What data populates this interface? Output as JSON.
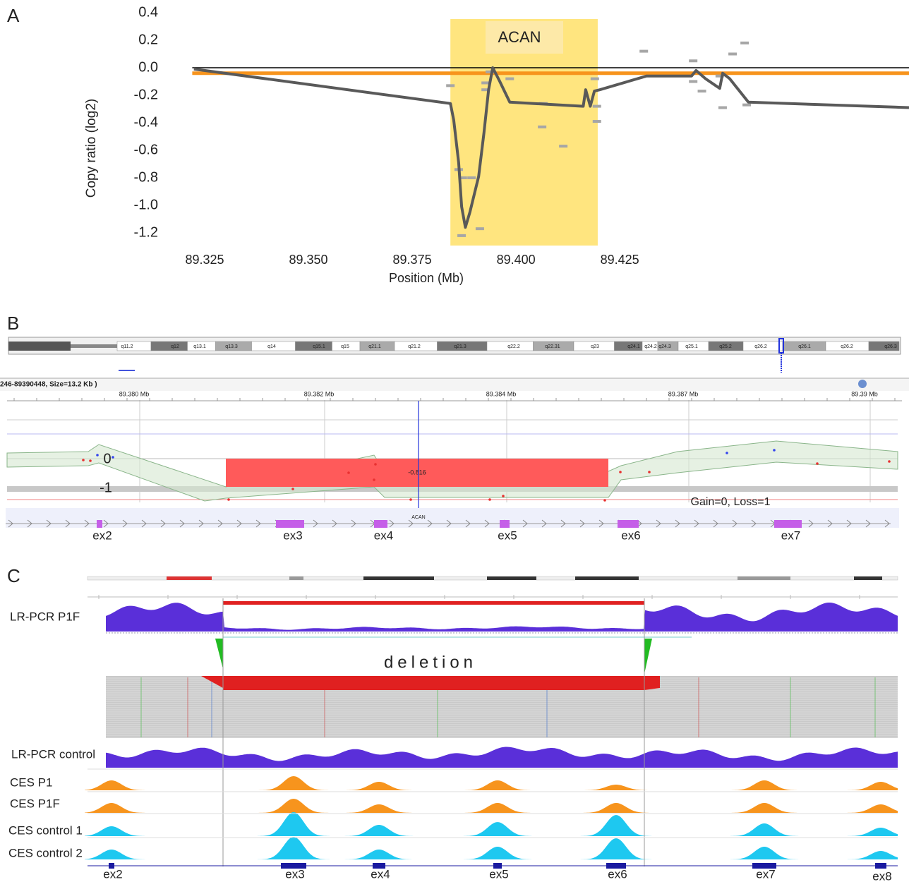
{
  "panel_labels": [
    "A",
    "B",
    "C"
  ],
  "chart_data": {
    "type": "line",
    "ylabel": "Copy ratio (log2)",
    "xlabel": "Position (Mb)",
    "xlim": [
      89.322,
      89.4947
    ],
    "ylim": [
      -1.3,
      0.45
    ],
    "xticks": [
      89.325,
      {
        "value": 89.35,
        "label": "89.350"
      },
      89.375,
      {
        "value": 89.4,
        "label": "89.400"
      },
      89.425
    ],
    "yticks": [
      0.4,
      0.2,
      {
        "value": 0,
        "label": "0.0"
      },
      -0.2,
      -0.4,
      -0.6,
      -0.8,
      {
        "value": -1,
        "label": "-1.0"
      },
      -1.2
    ],
    "highlight": {
      "xrange": [
        89.3842,
        89.4197
      ],
      "label": "ACAN",
      "color": "#ffe57f"
    },
    "hlines": [
      {
        "value": 0,
        "color": "#000000"
      },
      {
        "value": -0.04,
        "color": "#f7941d"
      }
    ],
    "line": {
      "color": "#595959",
      "x": [
        89.3224,
        89.3842,
        89.385,
        89.3862,
        89.3869,
        89.3878,
        89.3889,
        89.391,
        89.3923,
        89.3934,
        89.3944,
        89.3961,
        89.3985,
        89.4162,
        89.4168,
        89.4179,
        89.4189,
        89.4202,
        89.4315,
        89.4423,
        89.4434,
        89.4457,
        89.4491,
        89.4498,
        89.4515,
        89.456,
        89.4947
      ],
      "values": [
        -0.01,
        -0.26,
        -0.38,
        -0.69,
        -1.01,
        -1.16,
        -1.05,
        -0.79,
        -0.47,
        -0.16,
        0.0,
        -0.1,
        -0.25,
        -0.28,
        -0.16,
        -0.28,
        -0.17,
        -0.16,
        -0.06,
        -0.06,
        -0.02,
        -0.08,
        -0.15,
        -0.04,
        -0.08,
        -0.25,
        -0.29
      ]
    },
    "segments": {
      "color": "#a6a6a6",
      "x": [
        89.3842,
        89.3862,
        89.3872,
        89.3893,
        89.3913,
        89.3869,
        89.3927,
        89.3927,
        89.3937,
        89.3985,
        89.4066,
        89.4063,
        89.4114,
        89.419,
        89.4195,
        89.4195,
        89.4308,
        89.4427,
        89.4427,
        89.4448,
        89.4491,
        89.4498,
        89.4522,
        89.4551,
        89.4556
      ],
      "values": [
        -0.13,
        -0.74,
        -0.8,
        -0.8,
        -1.17,
        -1.22,
        -0.11,
        -0.16,
        -0.03,
        -0.08,
        -0.26,
        -0.43,
        -0.57,
        -0.08,
        -0.28,
        -0.39,
        0.12,
        0.05,
        -0.1,
        -0.17,
        -0.06,
        -0.29,
        0.1,
        0.18,
        -0.27
      ]
    }
  },
  "panel_b": {
    "bands": [
      "q11.2",
      "q12",
      "q13.1",
      "q13.3",
      "q14",
      "q15.1",
      "q15",
      "q21.1",
      "q21.2",
      "q21.3",
      "q22.2",
      "q22.31",
      "q23",
      "q24.1",
      "q24.2",
      "q24.3",
      "q25.1",
      "q25.2",
      "q26.2",
      "q26.1",
      "q26.2",
      "q26.3"
    ],
    "region": "246-89390448, Size=13.2 Kb )",
    "positions": [
      "89.380 Mb",
      "89.382 Mb",
      "89.384 Mb",
      "89.387 Mb",
      "89.39 Mb"
    ],
    "axis_labels": [
      "0",
      "-1"
    ],
    "segment_value": "-0.816",
    "gene": "ACAN",
    "status": "Gain=0, Loss=1",
    "exons": [
      "ex2",
      "ex3",
      "ex4",
      "ex5",
      "ex6",
      "ex7"
    ]
  },
  "panel_c": {
    "tracks": [
      "LR-PCR P1F",
      "LR-PCR control",
      "CES P1",
      "CES P1F",
      "CES control 1",
      "CES control 2"
    ],
    "deletion_label": "deletion",
    "exons": [
      "ex2",
      "ex3",
      "ex4",
      "ex5",
      "ex6",
      "ex7",
      "ex8"
    ]
  }
}
